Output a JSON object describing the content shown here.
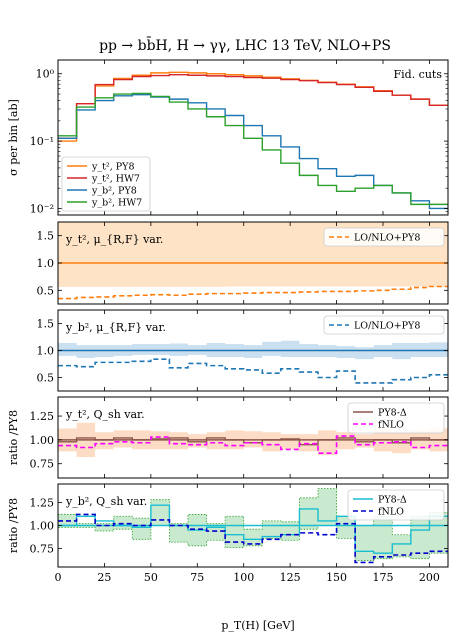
{
  "figure": {
    "title": "pp → bb̄H, H → γγ, LHC 13 TeV, NLO+PS",
    "xlabel": "p_T(H) [GeV]",
    "x_ticks": [
      "0",
      "25",
      "50",
      "75",
      "100",
      "125",
      "150",
      "175",
      "200"
    ]
  },
  "chart_data": [
    {
      "type": "line",
      "panel": "distribution",
      "ylabel": "σ per bin [ab]",
      "yscale": "log",
      "ylim": [
        0.008,
        1.6
      ],
      "xlim": [
        0,
        210
      ],
      "y_ticks": [
        "10⁰",
        "10⁻¹",
        "10⁻²"
      ],
      "annotation": "Fid. cuts",
      "legend_position": "bottom-left",
      "x_edges": [
        0,
        10,
        20,
        30,
        40,
        50,
        60,
        70,
        80,
        90,
        100,
        110,
        120,
        130,
        140,
        150,
        160,
        170,
        180,
        190,
        200,
        210
      ],
      "series": [
        {
          "name": "y_t², PY8",
          "color": "#ff7f0e",
          "values": [
            0.1,
            0.36,
            0.66,
            0.85,
            0.95,
            1.03,
            1.05,
            1.03,
            1.0,
            0.97,
            0.93,
            0.89,
            0.84,
            0.8,
            0.75,
            0.7,
            0.64,
            0.56,
            0.48,
            0.42,
            0.34
          ]
        },
        {
          "name": "y_t², HW7",
          "color": "#d62728",
          "values": [
            0.11,
            0.36,
            0.69,
            0.82,
            0.91,
            0.94,
            0.97,
            0.95,
            0.93,
            0.91,
            0.88,
            0.86,
            0.82,
            0.79,
            0.74,
            0.69,
            0.63,
            0.55,
            0.48,
            0.42,
            0.34
          ]
        },
        {
          "name": "y_b², PY8",
          "color": "#1f77b4",
          "values": [
            0.11,
            0.29,
            0.4,
            0.47,
            0.49,
            0.45,
            0.42,
            0.37,
            0.3,
            0.24,
            0.17,
            0.12,
            0.082,
            0.055,
            0.039,
            0.03,
            0.031,
            0.022,
            0.017,
            0.013,
            0.01
          ]
        },
        {
          "name": "y_b², HW7",
          "color": "#2ca02c",
          "values": [
            0.12,
            0.32,
            0.44,
            0.5,
            0.51,
            0.46,
            0.38,
            0.3,
            0.23,
            0.17,
            0.11,
            0.074,
            0.047,
            0.031,
            0.022,
            0.018,
            0.02,
            0.022,
            0.017,
            0.0115,
            0.0115
          ]
        }
      ]
    },
    {
      "type": "line",
      "panel": "yt2_scale_ratio",
      "label": "y_t², μ_{R,F} var.",
      "ylim": [
        0.25,
        1.75
      ],
      "y_ticks": [
        "1.5",
        "1.0",
        "0.5"
      ],
      "legend_position": "top-right",
      "x_edges": [
        0,
        10,
        20,
        30,
        40,
        50,
        60,
        70,
        80,
        90,
        100,
        110,
        120,
        130,
        140,
        150,
        160,
        170,
        180,
        190,
        200,
        210
      ],
      "band": {
        "color": "#ffd9b3",
        "upper": [
          1.76,
          1.76,
          1.76,
          1.76,
          1.76,
          1.76,
          1.76,
          1.76,
          1.76,
          1.76,
          1.76,
          1.76,
          1.76,
          1.76,
          1.76,
          1.76,
          1.76,
          1.76,
          1.76,
          1.76,
          1.76
        ],
        "lower": [
          0.56,
          0.56,
          0.56,
          0.56,
          0.56,
          0.56,
          0.56,
          0.56,
          0.56,
          0.57,
          0.57,
          0.57,
          0.57,
          0.57,
          0.57,
          0.57,
          0.57,
          0.57,
          0.57,
          0.57,
          0.57
        ]
      },
      "central": 1.0,
      "series": [
        {
          "name": "LO/NLO+PY8",
          "color": "#ff7f0e",
          "dashed": true,
          "values": [
            0.35,
            0.37,
            0.38,
            0.4,
            0.41,
            0.42,
            0.41,
            0.43,
            0.44,
            0.44,
            0.45,
            0.46,
            0.46,
            0.47,
            0.48,
            0.48,
            0.49,
            0.5,
            0.52,
            0.55,
            0.57
          ]
        }
      ]
    },
    {
      "type": "line",
      "panel": "yb2_scale_ratio",
      "label": "y_b², μ_{R,F} var.",
      "ylim": [
        0.25,
        1.75
      ],
      "y_ticks": [
        "1.5",
        "1.0",
        "0.5"
      ],
      "legend_position": "top-right",
      "x_edges": [
        0,
        10,
        20,
        30,
        40,
        50,
        60,
        70,
        80,
        90,
        100,
        110,
        120,
        130,
        140,
        150,
        160,
        170,
        180,
        190,
        200,
        210
      ],
      "band": {
        "color": "#b8d4ea",
        "upper": [
          1.14,
          1.1,
          1.1,
          1.1,
          1.12,
          1.12,
          1.13,
          1.1,
          1.14,
          1.12,
          1.1,
          1.16,
          1.18,
          1.12,
          1.1,
          1.08,
          1.06,
          1.1,
          1.14,
          1.14,
          1.15
        ],
        "lower": [
          0.9,
          0.86,
          0.88,
          0.9,
          0.92,
          0.92,
          0.9,
          0.92,
          0.88,
          0.88,
          0.86,
          0.9,
          0.88,
          0.88,
          0.88,
          0.86,
          0.84,
          0.88,
          0.84,
          0.88,
          0.88
        ]
      },
      "central": 1.0,
      "series": [
        {
          "name": "LO/NLO+PY8",
          "color": "#1f77b4",
          "dashed": true,
          "values": [
            0.72,
            0.7,
            0.78,
            0.78,
            0.8,
            0.84,
            0.68,
            0.76,
            0.72,
            0.66,
            0.64,
            0.58,
            0.66,
            0.6,
            0.5,
            0.62,
            0.4,
            0.4,
            0.46,
            0.5,
            0.55
          ]
        }
      ]
    },
    {
      "type": "line",
      "panel": "yt2_shower_ratio",
      "ylabel": "ratio /PY8",
      "label": "y_t², Q_sh var.",
      "ylim": [
        0.6,
        1.45
      ],
      "y_ticks": [
        "1.25",
        "1.00",
        "0.75"
      ],
      "legend_position": "top-right",
      "x_edges": [
        0,
        10,
        20,
        30,
        40,
        50,
        60,
        70,
        80,
        90,
        100,
        110,
        120,
        130,
        140,
        150,
        160,
        170,
        180,
        190,
        200,
        210
      ],
      "band": {
        "color": "#fbd0b0",
        "upper": [
          1.12,
          1.18,
          1.08,
          1.1,
          1.1,
          1.09,
          1.08,
          1.06,
          1.08,
          1.1,
          1.09,
          1.08,
          1.06,
          1.06,
          1.1,
          1.08,
          1.06,
          1.1,
          1.08,
          1.1,
          1.12
        ],
        "lower": [
          0.88,
          0.82,
          0.9,
          0.92,
          0.9,
          0.9,
          0.9,
          0.92,
          0.9,
          0.9,
          0.92,
          0.88,
          0.9,
          0.88,
          0.84,
          0.9,
          0.92,
          0.88,
          0.86,
          0.9,
          0.88
        ]
      },
      "central": 1.0,
      "series": [
        {
          "name": "PY8-Δ",
          "color": "#8c564b",
          "values": [
            0.98,
            1.02,
            1.0,
            1.02,
            1.0,
            1.01,
            1.02,
            0.98,
            1.02,
            1.0,
            0.97,
            1.0,
            1.01,
            0.95,
            1.0,
            1.02,
            0.98,
            1.0,
            0.97,
            1.02,
            1.0
          ]
        },
        {
          "name": "fNLO",
          "color": "#ff00ff",
          "dashed": true,
          "values": [
            0.94,
            0.92,
            0.96,
            0.98,
            0.97,
            1.03,
            0.96,
            0.95,
            0.97,
            0.94,
            0.97,
            0.95,
            0.9,
            0.96,
            0.86,
            1.04,
            0.95,
            0.97,
            0.98,
            0.92,
            0.94
          ]
        }
      ]
    },
    {
      "type": "line",
      "panel": "yb2_shower_ratio",
      "ylabel": "ratio /PY8",
      "label": "y_b², Q_sh var.",
      "ylim": [
        0.55,
        1.45
      ],
      "y_ticks": [
        "1.25",
        "1.00",
        "0.75"
      ],
      "legend_position": "top-right",
      "x_edges": [
        0,
        10,
        20,
        30,
        40,
        50,
        60,
        70,
        80,
        90,
        100,
        110,
        120,
        130,
        140,
        150,
        160,
        170,
        180,
        190,
        200,
        210
      ],
      "band_color": "#9ed8a8",
      "central": 1.0,
      "series": [
        {
          "name": "PY8-Δ",
          "color": "#17becf",
          "values": [
            1.0,
            1.1,
            1.05,
            1.0,
            0.98,
            1.22,
            1.0,
            0.95,
            0.98,
            0.9,
            0.85,
            0.88,
            0.9,
            1.18,
            1.05,
            1.1,
            0.72,
            0.7,
            0.8,
            0.95,
            1.1
          ]
        },
        {
          "name": "fNLO",
          "color": "#0000cc",
          "dashed": true,
          "values": [
            1.05,
            1.12,
            1.0,
            1.02,
            1.0,
            1.06,
            1.0,
            0.96,
            0.94,
            0.82,
            0.8,
            0.85,
            0.9,
            0.92,
            0.9,
            1.02,
            0.6,
            0.66,
            0.68,
            0.7,
            0.72
          ]
        },
        {
          "name": "",
          "color": "#2ca02c",
          "band": true,
          "upper": [
            1.12,
            1.02,
            1.02,
            1.1,
            1.08,
            1.28,
            1.02,
            1.12,
            1.02,
            1.1,
            0.96,
            1.05,
            1.04,
            1.3,
            1.4,
            1.1,
            1.0,
            1.1,
            0.9,
            1.1,
            1.14
          ],
          "lower": [
            0.98,
            0.98,
            0.94,
            0.96,
            0.85,
            1.0,
            0.82,
            0.78,
            0.84,
            0.76,
            0.78,
            0.86,
            0.84,
            0.96,
            1.0,
            0.86,
            0.62,
            0.64,
            0.66,
            0.64,
            0.7
          ]
        }
      ]
    }
  ]
}
